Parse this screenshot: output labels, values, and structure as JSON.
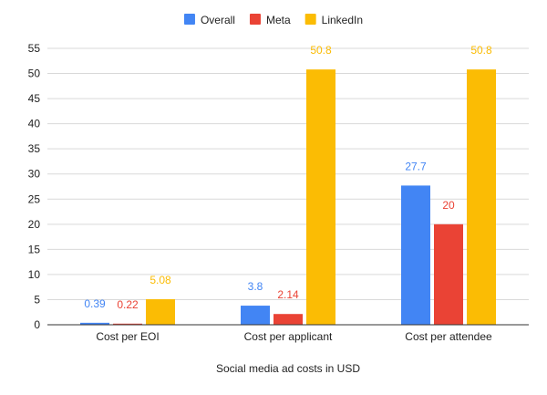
{
  "chart_data": {
    "type": "bar",
    "title": "",
    "xlabel": "Social media ad costs in USD",
    "ylabel": "",
    "categories": [
      "Cost per EOI",
      "Cost per applicant",
      "Cost per attendee"
    ],
    "series": [
      {
        "name": "Overall",
        "color": "#4285f4",
        "values": [
          0.39,
          3.8,
          27.7
        ],
        "labels": [
          "0.39",
          "3.8",
          "27.7"
        ]
      },
      {
        "name": "Meta",
        "color": "#ea4335",
        "values": [
          0.22,
          2.14,
          20
        ],
        "labels": [
          "0.22",
          "2.14",
          "20"
        ]
      },
      {
        "name": "LinkedIn",
        "color": "#fbbc04",
        "values": [
          5.08,
          50.8,
          50.8
        ],
        "labels": [
          "5.08",
          "50.8",
          "50.8"
        ]
      }
    ],
    "ylim": [
      0,
      55
    ],
    "yticks": [
      0,
      5,
      10,
      15,
      20,
      25,
      30,
      35,
      40,
      45,
      50,
      55
    ],
    "grid": true,
    "legend_position": "top"
  }
}
